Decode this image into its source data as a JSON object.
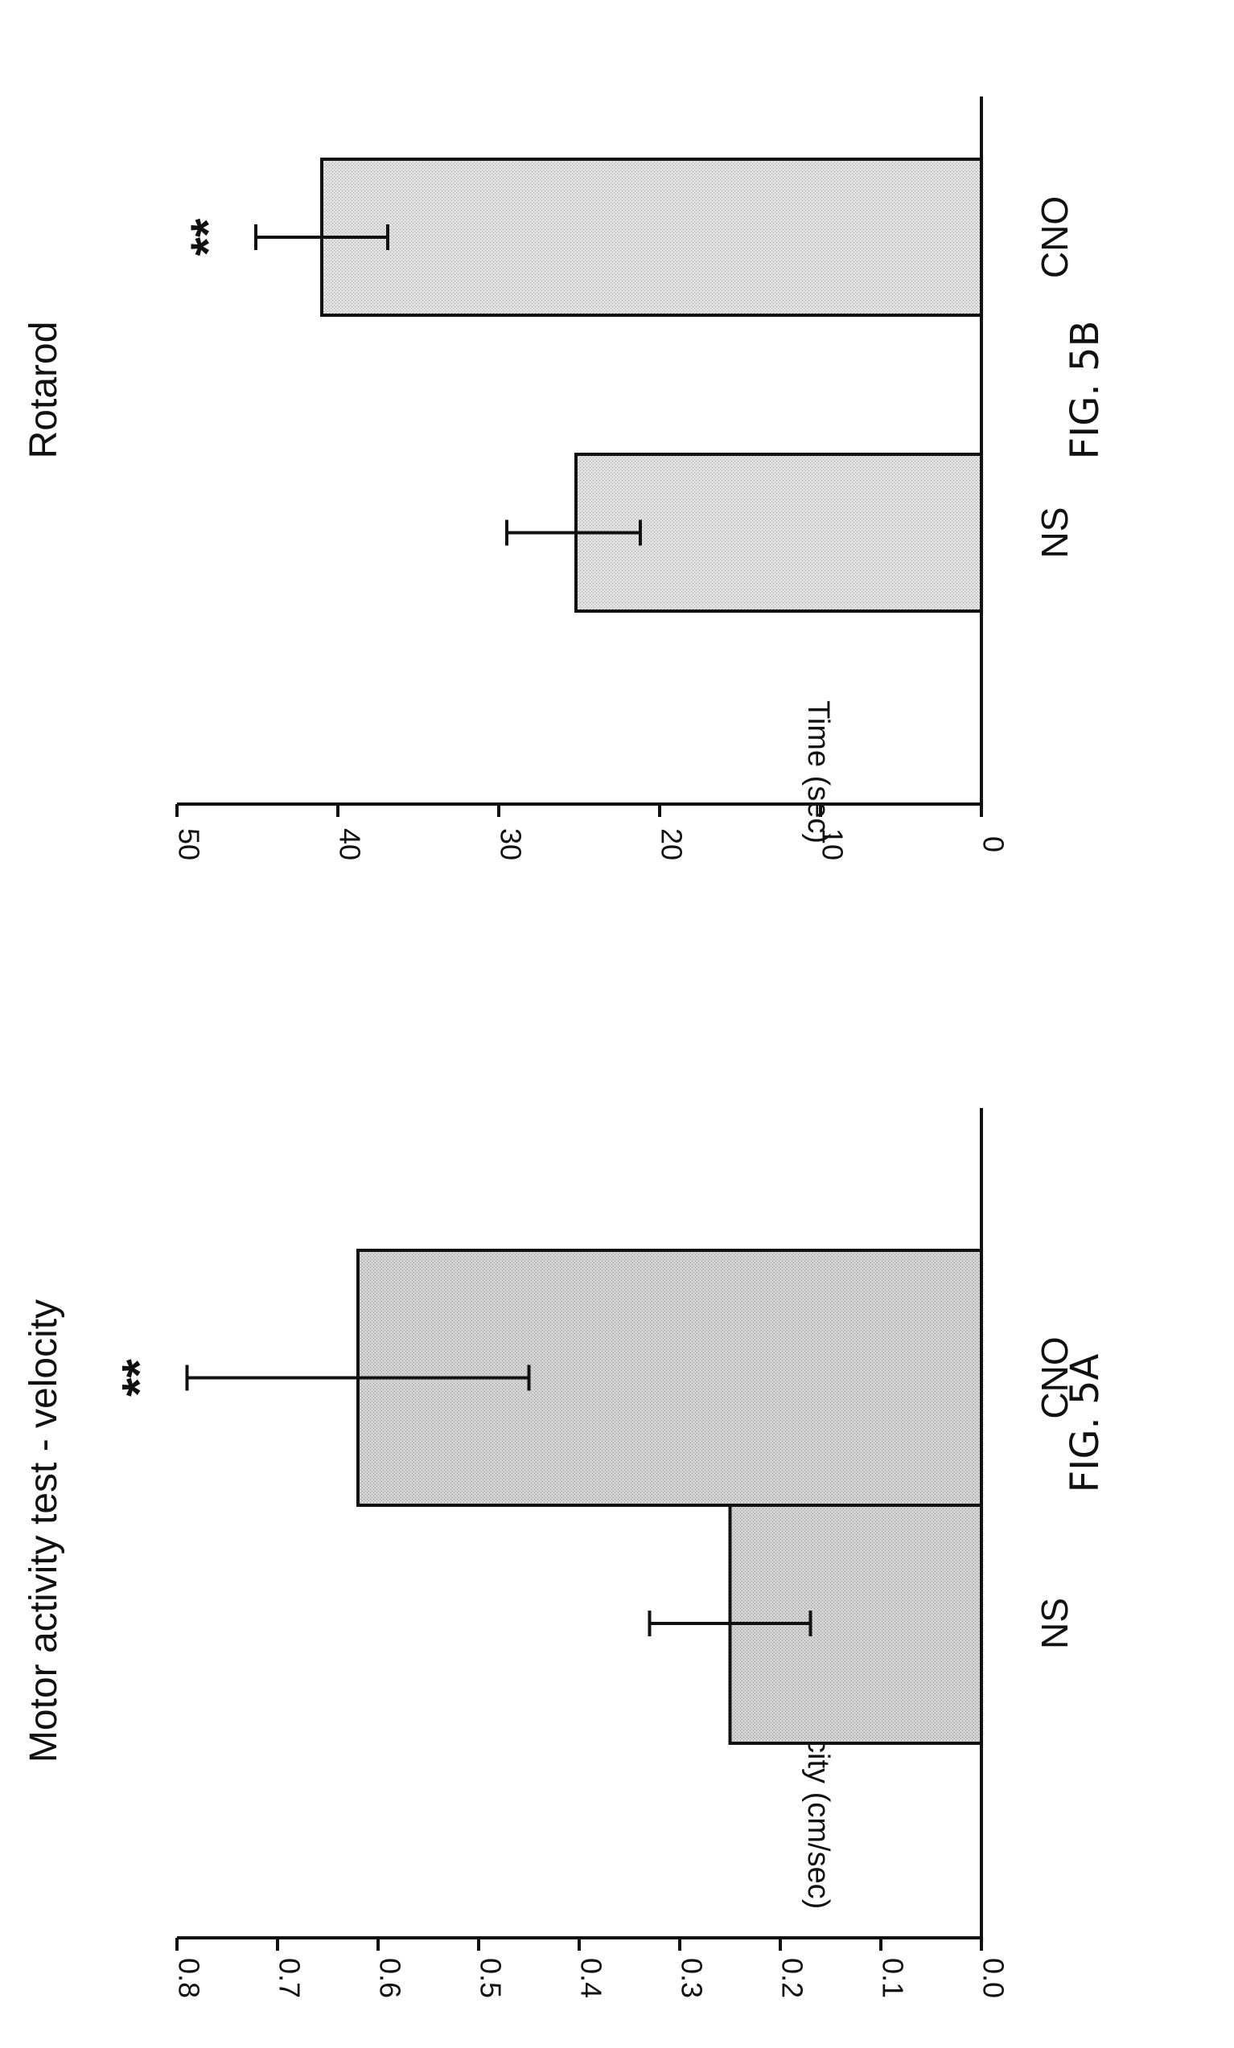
{
  "chart_data": [
    {
      "id": "fig5a",
      "type": "bar",
      "title": "Motor activity test - velocity",
      "ylabel": "Mean velocity (cm/sec)",
      "xlabel": "",
      "caption": "FIG. 5A",
      "ylim": [
        0,
        0.8
      ],
      "yticks": [
        "0.0",
        "0.1",
        "0.2",
        "0.3",
        "0.4",
        "0.5",
        "0.6",
        "0.7",
        "0.8"
      ],
      "ytick_values": [
        0,
        0.1,
        0.2,
        0.3,
        0.4,
        0.5,
        0.6,
        0.7,
        0.8
      ],
      "categories": [
        "NS",
        "CNO"
      ],
      "values": [
        0.25,
        0.62
      ],
      "error_low": [
        0.17,
        0.45
      ],
      "error_high": [
        0.33,
        0.79
      ],
      "annotations": [
        "",
        "**"
      ],
      "grid": false,
      "bar_color": "#cfcfcf"
    },
    {
      "id": "fig5b",
      "type": "bar",
      "title": "Rotarod",
      "ylabel": "Time (sec)",
      "xlabel": "",
      "caption": "FIG. 5B",
      "ylim": [
        0,
        50
      ],
      "yticks": [
        "0",
        "10",
        "20",
        "30",
        "40",
        "50"
      ],
      "ytick_values": [
        0,
        10,
        20,
        30,
        40,
        50
      ],
      "categories": [
        "NS",
        "CNO"
      ],
      "values": [
        25.2,
        41
      ],
      "error_low": [
        21.2,
        36.9
      ],
      "error_high": [
        29.5,
        45.1
      ],
      "annotations": [
        "",
        "**"
      ],
      "grid": false,
      "bar_color": "#dedede"
    }
  ],
  "orientation": "rotated 90 degrees clockwise (axes drawn along page edges)"
}
